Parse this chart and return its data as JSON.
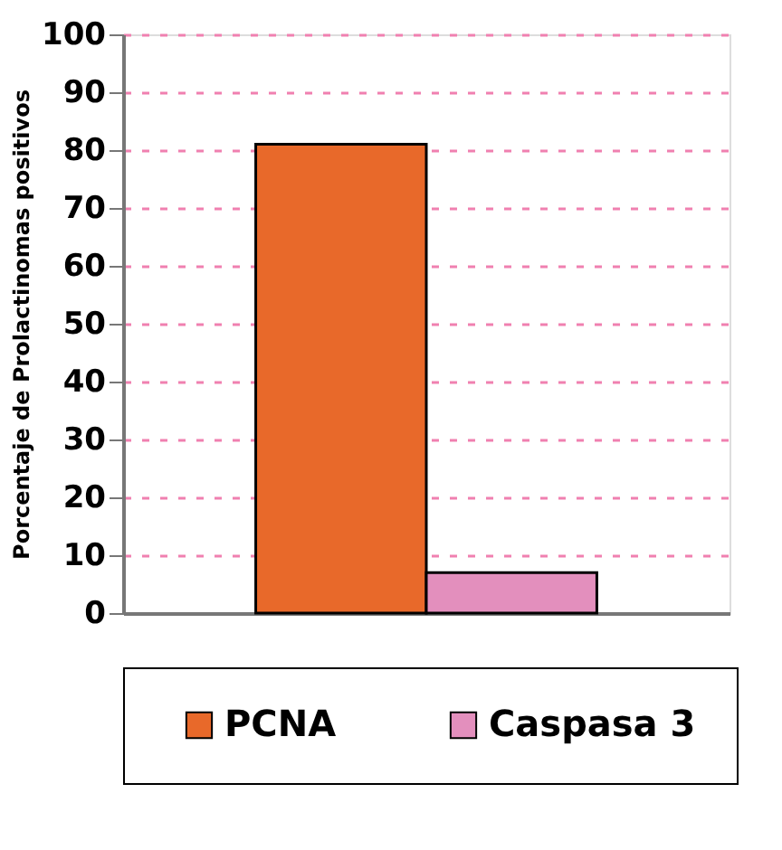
{
  "chart_data": {
    "type": "bar",
    "ylabel": "Porcentaje de Prolactinomas positivos",
    "categories": [
      null
    ],
    "series": [
      {
        "name": "PCNA",
        "color": "#e8692a",
        "values": [
          81
        ]
      },
      {
        "name": "Caspasa 3",
        "color": "#e38fbd",
        "values": [
          7
        ]
      }
    ],
    "ylim": [
      0,
      100
    ],
    "yticks": [
      0,
      10,
      20,
      30,
      40,
      50,
      60,
      70,
      80,
      90,
      100
    ],
    "grid": "y",
    "legend": "bottom",
    "tick_labels": "y"
  }
}
